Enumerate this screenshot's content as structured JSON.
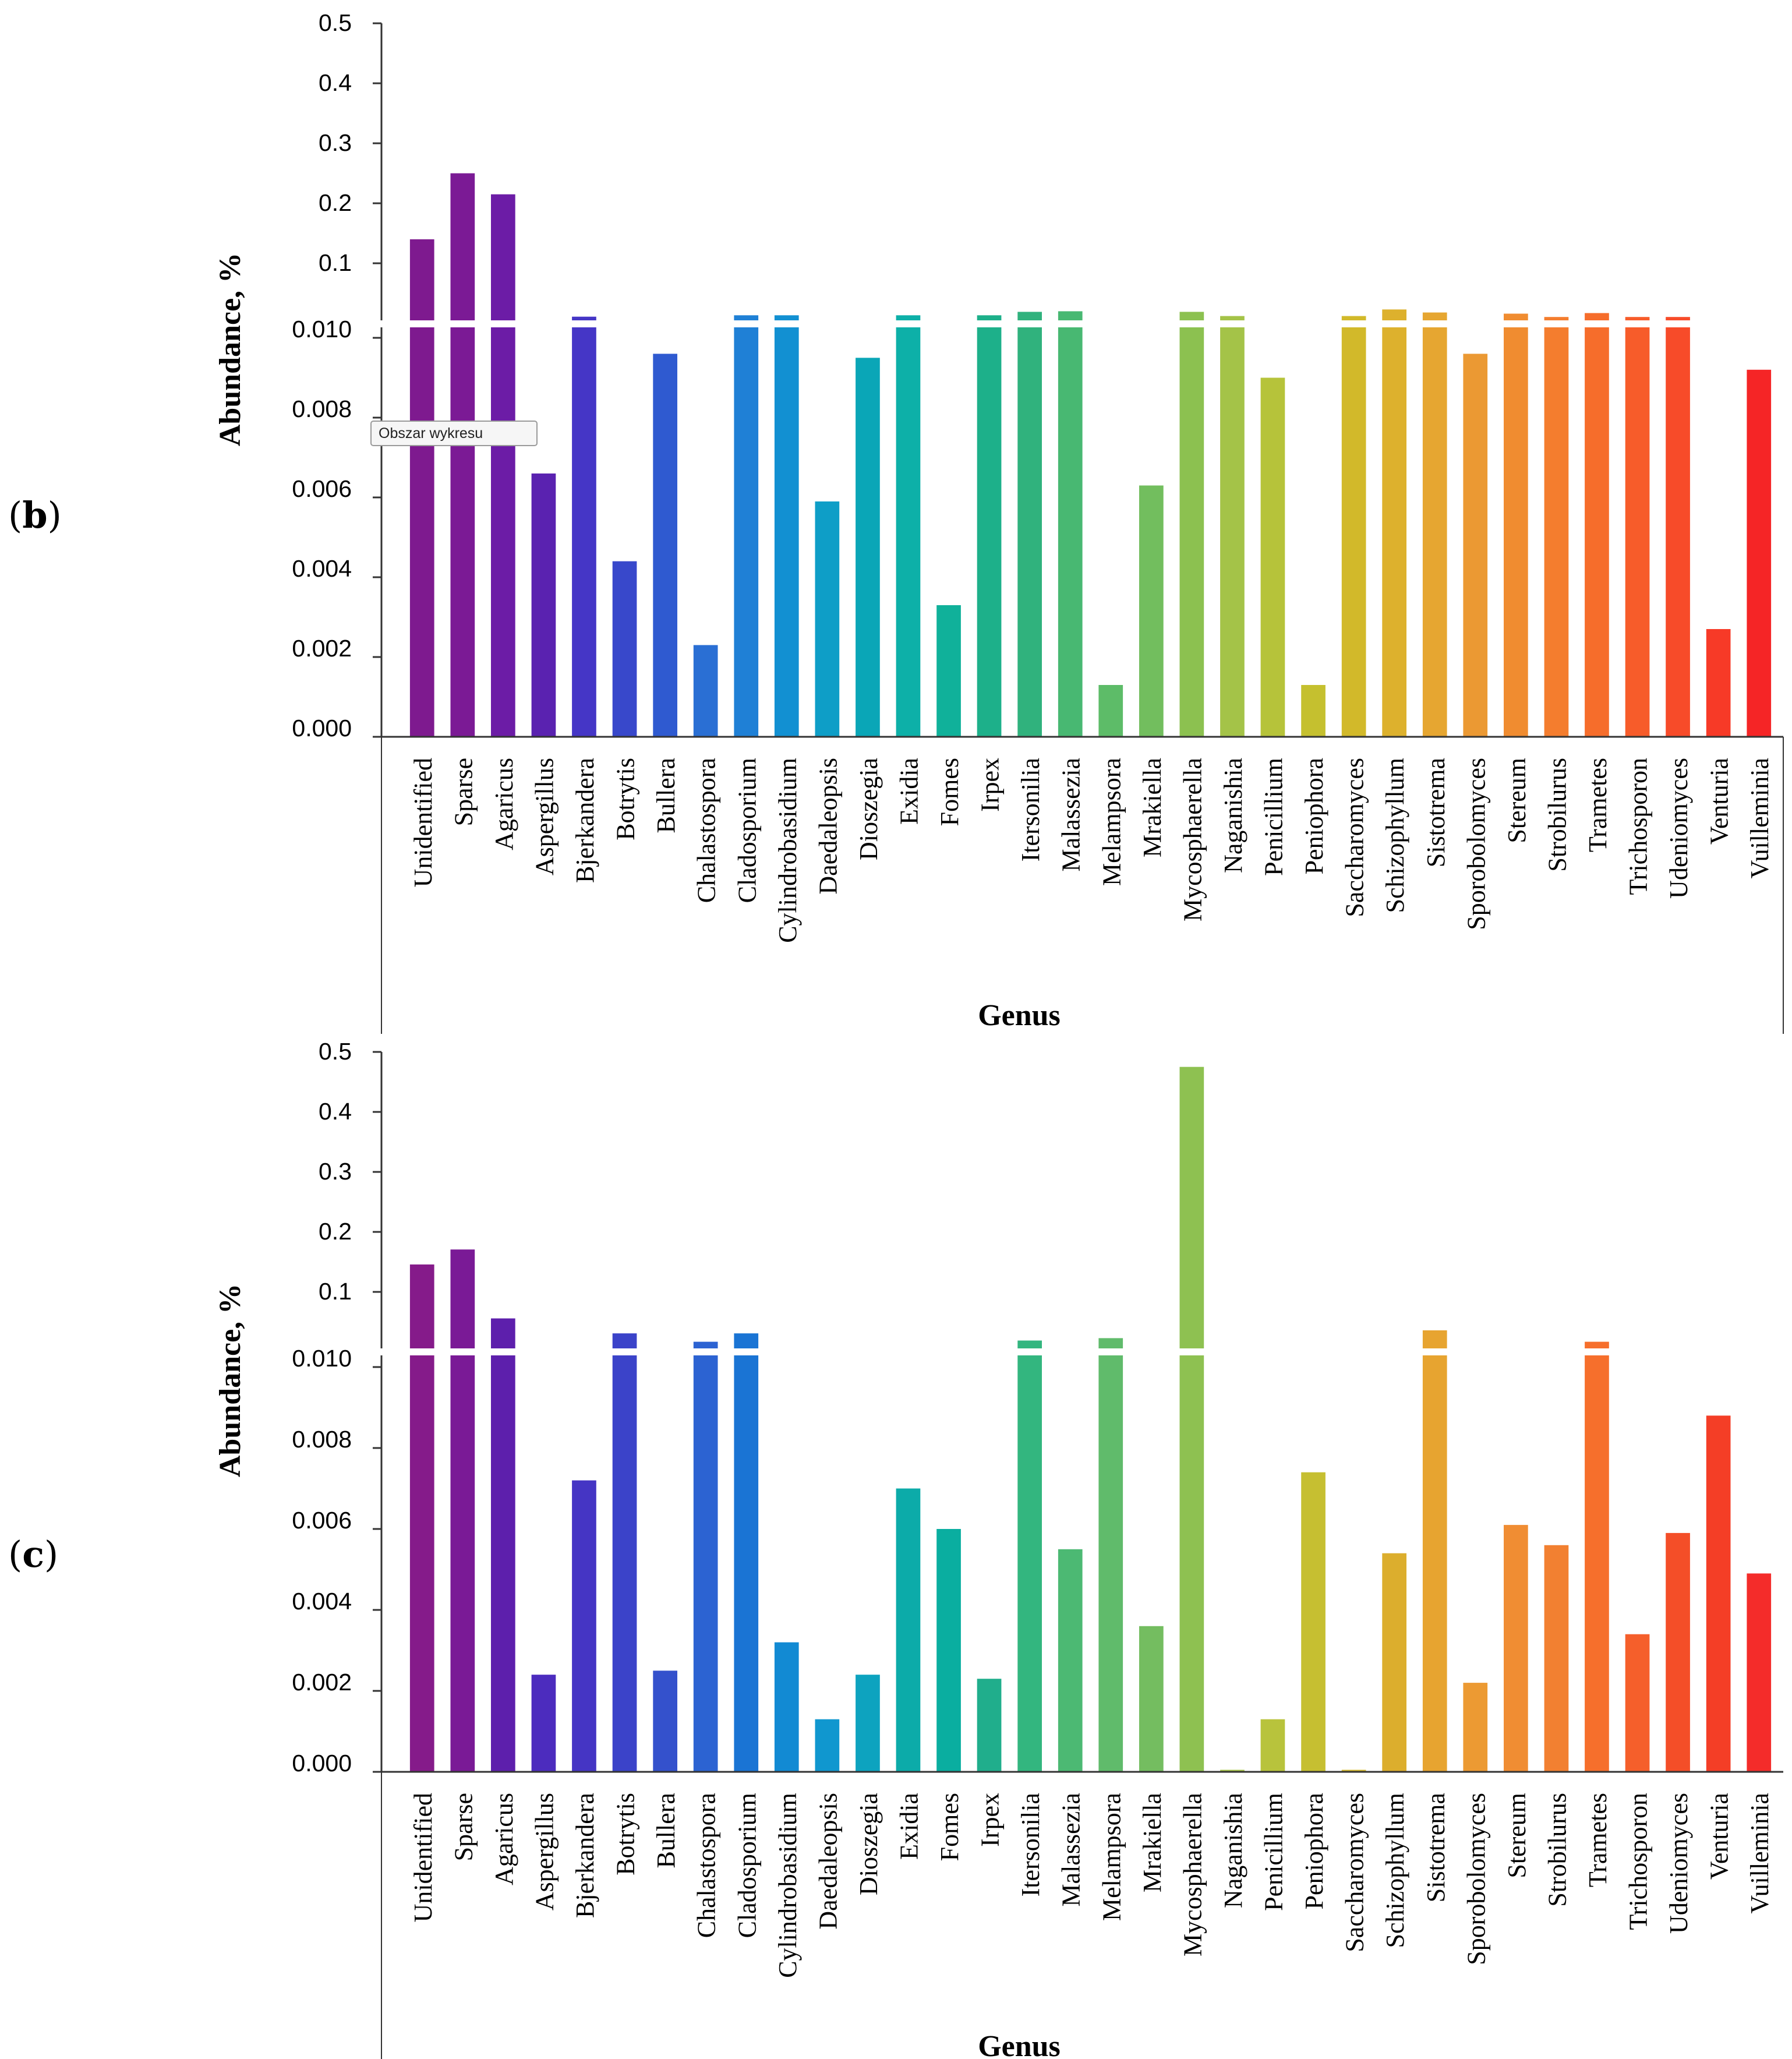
{
  "chart_data": [
    {
      "type": "bar",
      "panel_label": "(b)",
      "panel_label_parts": {
        "open": "(",
        "letter": "b",
        "close": ")"
      },
      "title": "",
      "xlabel": "Genus",
      "ylabel": "Abundance, %",
      "axis_break": true,
      "lower_ylim": [
        0,
        0.01
      ],
      "lower_ticks": [
        "0.000",
        "0.002",
        "0.004",
        "0.006",
        "0.008",
        "0.010"
      ],
      "upper_ylim": [
        0,
        0.5
      ],
      "upper_ticks": [
        "0.1",
        "0.2",
        "0.3",
        "0.4",
        "0.5"
      ],
      "tooltip": "Obszar wykresu",
      "categories": [
        "Unidentified",
        "Sparse",
        "Agaricus",
        "Aspergillus",
        "Bjerkandera",
        "Botrytis",
        "Bullera",
        "Chalastospora",
        "Cladosporium",
        "Cylindrobasidium",
        "Daedaleopsis",
        "Dioszegia",
        "Exidia",
        "Fomes",
        "Irpex",
        "Itersonilia",
        "Malassezia",
        "Melampsora",
        "Mrakiella",
        "Mycosphaerella",
        "Naganishia",
        "Penicillium",
        "Peniophora",
        "Saccharomyces",
        "Schizophyllum",
        "Sistotrema",
        "Sporobolomyces",
        "Stereum",
        "Strobilurus",
        "Trametes",
        "Trichosporon",
        "Udeniomyces",
        "Venturia",
        "Vuilleminia"
      ],
      "values": [
        0.14,
        0.25,
        0.215,
        0.0066,
        0.011,
        0.0044,
        0.0096,
        0.0023,
        0.0133,
        0.0133,
        0.0059,
        0.0095,
        0.0133,
        0.0033,
        0.0133,
        0.019,
        0.02,
        0.0013,
        0.0063,
        0.019,
        0.012,
        0.009,
        0.0013,
        0.012,
        0.023,
        0.018,
        0.0096,
        0.016,
        0.0105,
        0.017,
        0.0105,
        0.0105,
        0.0027,
        0.0092
      ],
      "colors": [
        "#7e1a8f",
        "#7b1a95",
        "#6c1ca6",
        "#5a22b0",
        "#4536c6",
        "#3848cb",
        "#2f5ad0",
        "#2a6fd4",
        "#1f80d6",
        "#1290d2",
        "#0e9ec7",
        "#0aa6b7",
        "#0db0a8",
        "#10b19a",
        "#1db08a",
        "#30b27d",
        "#48b872",
        "#5dbc68",
        "#72be5e",
        "#8cc150",
        "#a4c348",
        "#b6c33a",
        "#c5c02f",
        "#d2b92a",
        "#ddb12d",
        "#e6a631",
        "#eb9933",
        "#f08c30",
        "#f47d2e",
        "#f66d2b",
        "#f75c2a",
        "#f74b29",
        "#f73a27",
        "#f52526"
      ]
    },
    {
      "type": "bar",
      "panel_label": "(c)",
      "panel_label_parts": {
        "open": "(",
        "letter": "c",
        "close": ")"
      },
      "title": "",
      "xlabel": "Genus",
      "ylabel": "Abundance, %",
      "axis_break": true,
      "lower_ylim": [
        0,
        0.01
      ],
      "lower_ticks": [
        "0.000",
        "0.002",
        "0.004",
        "0.006",
        "0.008",
        "0.010"
      ],
      "upper_ylim": [
        0,
        0.5
      ],
      "upper_ticks": [
        "0.1",
        "0.2",
        "0.3",
        "0.4",
        "0.5"
      ],
      "categories": [
        "Unidentified",
        "Sparse",
        "Agaricus",
        "Aspergillus",
        "Bjerkandera",
        "Botrytis",
        "Bullera",
        "Chalastospora",
        "Cladosporium",
        "Cylindrobasidium",
        "Daedaleopsis",
        "Dioszegia",
        "Exidia",
        "Fomes",
        "Irpex",
        "Itersonilia",
        "Malassezia",
        "Melampsora",
        "Mrakiella",
        "Mycosphaerella",
        "Naganishia",
        "Penicillium",
        "Peniophora",
        "Saccharomyces",
        "Schizophyllum",
        "Sistotrema",
        "Sporobolomyces",
        "Stereum",
        "Strobilurus",
        "Trametes",
        "Trichosporon",
        "Udeniomyces",
        "Venturia",
        "Vuilleminia"
      ],
      "values": [
        0.145,
        0.17,
        0.055,
        0.0024,
        0.0072,
        0.03,
        0.0025,
        0.016,
        0.03,
        0.0032,
        0.0013,
        0.0024,
        0.007,
        0.006,
        0.0023,
        0.018,
        0.0055,
        0.022,
        0.0036,
        0.475,
        5e-05,
        0.0013,
        0.0074,
        5e-05,
        0.0054,
        0.035,
        0.0022,
        0.0061,
        0.0056,
        0.016,
        0.0034,
        0.0059,
        0.0088,
        0.0049
      ],
      "colors": [
        "#851b8a",
        "#7a1a96",
        "#5d1fac",
        "#4c2cbe",
        "#4535c4",
        "#3b43c9",
        "#3451cc",
        "#2c63d2",
        "#1a74d4",
        "#128ad3",
        "#1097cf",
        "#0da3bf",
        "#0caba9",
        "#0aaea0",
        "#20ae8c",
        "#33b67f",
        "#4cb973",
        "#60bb6b",
        "#74bd60",
        "#8ec151",
        "#a6c347",
        "#b8c33c",
        "#c6bf31",
        "#d3b72d",
        "#dcae2d",
        "#e7a430",
        "#ec9a33",
        "#f08d33",
        "#f28031",
        "#f66f2c",
        "#f55f2b",
        "#f44e28",
        "#f43e26",
        "#f42c2a"
      ]
    }
  ]
}
